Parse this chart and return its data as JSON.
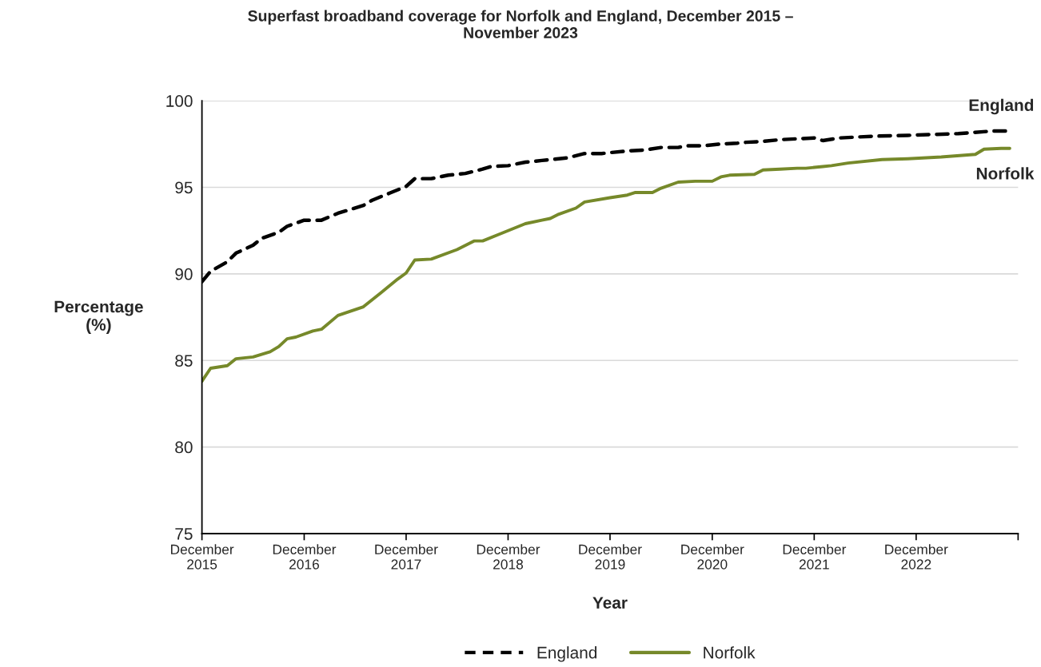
{
  "chart_data": {
    "type": "line",
    "title": "Superfast broadband coverage for Norfolk and England, December 2015 –\nNovember 2023",
    "xlabel": "Year",
    "ylabel": "Percentage\n(%)",
    "xlim": [
      "2015-12",
      "2023-12"
    ],
    "xticks": [
      {
        "value": "2015-12",
        "label": "December\n2015"
      },
      {
        "value": "2016-12",
        "label": "December\n2016"
      },
      {
        "value": "2017-12",
        "label": "December\n2017"
      },
      {
        "value": "2018-12",
        "label": "December\n2018"
      },
      {
        "value": "2019-12",
        "label": "December\n2019"
      },
      {
        "value": "2020-12",
        "label": "December\n2020"
      },
      {
        "value": "2021-12",
        "label": "December\n2021"
      },
      {
        "value": "2022-12",
        "label": "December\n2022"
      },
      {
        "value": "2023-12",
        "label": null
      }
    ],
    "ylim": [
      75,
      100
    ],
    "yticks": [
      75,
      80,
      85,
      90,
      95,
      100
    ],
    "grid": "y",
    "legend": "bottom",
    "series": [
      {
        "name": "England",
        "color": "#000000",
        "line_style": "dashed",
        "x": [
          "2015-12",
          "2016-01",
          "2016-03",
          "2016-04",
          "2016-06",
          "2016-07",
          "2016-09",
          "2016-10",
          "2016-12",
          "2017-02",
          "2017-04",
          "2017-05",
          "2017-07",
          "2017-08",
          "2017-10",
          "2017-12",
          "2018-01",
          "2018-03",
          "2018-05",
          "2018-07",
          "2018-09",
          "2018-10",
          "2018-12",
          "2019-02",
          "2019-04",
          "2019-05",
          "2019-07",
          "2019-09",
          "2019-11",
          "2019-12",
          "2020-02",
          "2020-04",
          "2020-06",
          "2020-08",
          "2020-09",
          "2020-11",
          "2021-01",
          "2021-03",
          "2021-04",
          "2021-06",
          "2021-08",
          "2021-10",
          "2021-12",
          "2022-01",
          "2022-03",
          "2022-07",
          "2022-11",
          "2023-02",
          "2023-05",
          "2023-09",
          "2023-11"
        ],
        "values": [
          89.55,
          90.15,
          90.7,
          91.2,
          91.65,
          92.05,
          92.4,
          92.75,
          93.1,
          93.1,
          93.5,
          93.65,
          93.95,
          94.25,
          94.65,
          95.05,
          95.5,
          95.5,
          95.7,
          95.8,
          96.05,
          96.2,
          96.25,
          96.45,
          96.55,
          96.6,
          96.7,
          96.95,
          96.95,
          97.0,
          97.1,
          97.15,
          97.3,
          97.3,
          97.4,
          97.4,
          97.5,
          97.55,
          97.6,
          97.65,
          97.75,
          97.8,
          97.85,
          97.7,
          97.85,
          97.95,
          98.0,
          98.05,
          98.1,
          98.25,
          98.25
        ]
      },
      {
        "name": "Norfolk",
        "color": "#76892a",
        "line_style": "solid",
        "x": [
          "2015-12",
          "2016-01",
          "2016-03",
          "2016-04",
          "2016-06",
          "2016-08",
          "2016-09",
          "2016-10",
          "2016-11",
          "2017-01",
          "2017-02",
          "2017-04",
          "2017-07",
          "2017-09",
          "2017-11",
          "2017-12",
          "2018-01",
          "2018-03",
          "2018-06",
          "2018-08",
          "2018-09",
          "2018-11",
          "2019-02",
          "2019-04",
          "2019-05",
          "2019-06",
          "2019-08",
          "2019-09",
          "2019-12",
          "2020-02",
          "2020-03",
          "2020-05",
          "2020-06",
          "2020-08",
          "2020-10",
          "2020-12",
          "2021-01",
          "2021-02",
          "2021-05",
          "2021-06",
          "2021-08",
          "2021-10",
          "2021-11",
          "2022-01",
          "2022-02",
          "2022-04",
          "2022-08",
          "2022-11",
          "2023-03",
          "2023-07",
          "2023-08",
          "2023-10",
          "2023-11"
        ],
        "values": [
          83.8,
          84.55,
          84.7,
          85.1,
          85.2,
          85.5,
          85.8,
          86.25,
          86.35,
          86.7,
          86.8,
          87.6,
          88.1,
          88.9,
          89.7,
          90.05,
          90.8,
          90.85,
          91.4,
          91.9,
          91.9,
          92.3,
          92.9,
          93.1,
          93.2,
          93.45,
          93.8,
          94.15,
          94.4,
          94.55,
          94.7,
          94.7,
          94.95,
          95.3,
          95.35,
          95.35,
          95.6,
          95.7,
          95.75,
          96.0,
          96.05,
          96.1,
          96.1,
          96.2,
          96.25,
          96.4,
          96.6,
          96.65,
          96.75,
          96.9,
          97.2,
          97.25,
          97.25
        ]
      }
    ]
  }
}
